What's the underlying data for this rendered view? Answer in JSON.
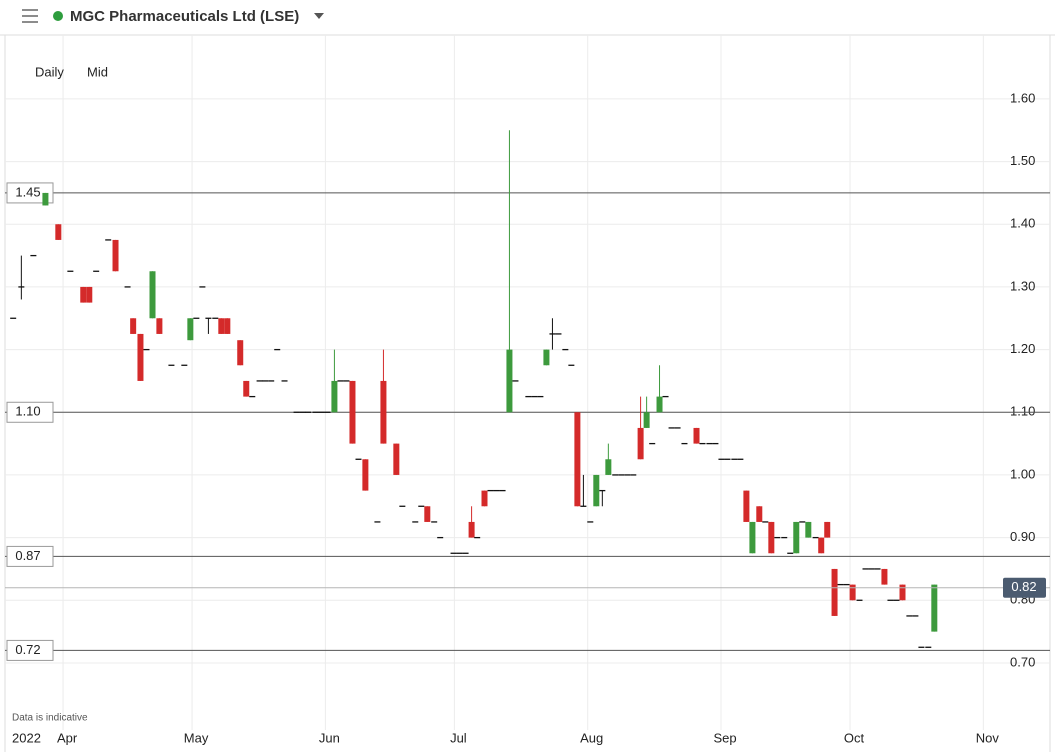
{
  "header": {
    "title": "MGC Pharmaceuticals Ltd (LSE)"
  },
  "toolbar": {
    "interval": "Daily",
    "price_type": "Mid"
  },
  "footer_note": "Data is indicative",
  "chart_data": {
    "type": "candlestick",
    "x": [
      79.4,
      81.3,
      84.1,
      86.9,
      89.9,
      92.7,
      95.7,
      97.1,
      98.7,
      101.5,
      103.2,
      106.0,
      107.3,
      109.0,
      110.4,
      111.8,
      113.4,
      116.2,
      119.2,
      120.6,
      122.0,
      123.4,
      124.8,
      126.4,
      127.8,
      129.2,
      132.2,
      133.6,
      135.0,
      136.7,
      138.0,
      139.4,
      140.8,
      142.5,
      145.3,
      146.7,
      148.0,
      149.7,
      151.1,
      152.5,
      154.1,
      155.5,
      156.9,
      158.3,
      159.7,
      161.3,
      164.1,
      165.5,
      168.5,
      169.9,
      172.9,
      174.3,
      175.7,
      177.3,
      178.7,
      181.8,
      183.2,
      184.6,
      186.0,
      187.3,
      189.0,
      190.4,
      191.8,
      193.2,
      194.8,
      196.2,
      199.2,
      200.6,
      202.0,
      203.4,
      204.8,
      206.2,
      207.8,
      209.2,
      210.6,
      212.0,
      213.6,
      215.0,
      216.4,
      217.8,
      219.4,
      220.8,
      222.2,
      223.6,
      225.3,
      226.7,
      228.0,
      229.7,
      231.1,
      232.5,
      233.9,
      235.5,
      238.3,
      239.7,
      241.3,
      242.7,
      244.1,
      245.5,
      247.1,
      248.5,
      249.9,
      251.3,
      252.9,
      254.3,
      255.7,
      257.1,
      258.7,
      260.1,
      261.5,
      262.9,
      264.3,
      266.0,
      267.3,
      268.7,
      270.4,
      271.8,
      273.2,
      274.6,
      276.2,
      277.6,
      279.0,
      280.4,
      282.0,
      283.4,
      284.8,
      286.2,
      287.8,
      289.2,
      290.6,
      292.2,
      293.6
    ],
    "open": [
      1.25,
      1.3,
      1.35,
      1.43,
      1.4,
      1.325,
      1.3,
      1.3,
      1.325,
      1.375,
      1.375,
      1.3,
      1.25,
      1.225,
      1.2,
      1.25,
      1.25,
      1.175,
      1.175,
      1.215,
      1.25,
      1.3,
      1.25,
      1.25,
      1.25,
      1.25,
      1.215,
      1.15,
      1.125,
      1.15,
      1.15,
      1.15,
      1.2,
      1.15,
      1.1,
      1.1,
      1.1,
      1.1,
      1.1,
      1.1,
      1.1,
      1.15,
      1.15,
      1.15,
      1.025,
      1.025,
      0.925,
      1.15,
      1.05,
      0.95,
      0.925,
      0.95,
      0.95,
      0.925,
      0.9,
      0.875,
      0.875,
      0.875,
      0.925,
      0.9,
      0.975,
      0.975,
      0.975,
      0.975,
      1.1,
      1.15,
      1.125,
      1.125,
      1.125,
      1.175,
      1.225,
      1.225,
      1.2,
      1.175,
      1.1,
      0.95,
      0.925,
      0.95,
      0.975,
      1.0,
      1.0,
      1.0,
      1.0,
      1.0,
      1.075,
      1.075,
      1.05,
      1.1,
      1.125,
      1.075,
      1.075,
      1.05,
      1.075,
      1.05,
      1.05,
      1.05,
      1.025,
      1.025,
      1.025,
      1.025,
      0.975,
      0.875,
      0.95,
      0.925,
      0.925,
      0.9,
      0.9,
      0.875,
      0.875,
      0.925,
      0.9,
      0.9,
      0.9,
      0.925,
      0.85,
      0.825,
      0.825,
      0.825,
      0.8,
      0.85,
      0.85,
      0.85,
      0.85,
      0.8,
      0.8,
      0.825,
      0.775,
      0.775,
      0.725,
      0.725,
      0.75
    ],
    "high": [
      1.25,
      1.35,
      1.35,
      1.45,
      1.4,
      1.325,
      1.3,
      1.3,
      1.325,
      1.375,
      1.375,
      1.3,
      1.25,
      1.225,
      1.2,
      1.325,
      1.25,
      1.175,
      1.175,
      1.25,
      1.25,
      1.3,
      1.25,
      1.25,
      1.25,
      1.25,
      1.215,
      1.15,
      1.125,
      1.15,
      1.15,
      1.15,
      1.2,
      1.15,
      1.1,
      1.1,
      1.1,
      1.1,
      1.1,
      1.1,
      1.2,
      1.15,
      1.15,
      1.15,
      1.025,
      1.025,
      0.925,
      1.2,
      1.05,
      0.95,
      0.925,
      0.95,
      0.95,
      0.925,
      0.9,
      0.875,
      0.875,
      0.875,
      0.95,
      0.9,
      0.975,
      0.975,
      0.975,
      0.975,
      1.55,
      1.15,
      1.125,
      1.125,
      1.125,
      1.2,
      1.25,
      1.225,
      1.2,
      1.175,
      1.1,
      1.0,
      0.925,
      1.0,
      0.975,
      1.05,
      1.0,
      1.0,
      1.0,
      1.0,
      1.125,
      1.125,
      1.05,
      1.175,
      1.125,
      1.075,
      1.075,
      1.05,
      1.075,
      1.05,
      1.05,
      1.05,
      1.025,
      1.025,
      1.025,
      1.025,
      0.975,
      0.925,
      0.95,
      0.925,
      0.925,
      0.9,
      0.9,
      0.875,
      0.925,
      0.925,
      0.925,
      0.9,
      0.9,
      0.925,
      0.85,
      0.825,
      0.825,
      0.825,
      0.8,
      0.85,
      0.85,
      0.85,
      0.85,
      0.8,
      0.8,
      0.825,
      0.775,
      0.775,
      0.725,
      0.725,
      0.825
    ],
    "low": [
      1.25,
      1.28,
      1.35,
      1.43,
      1.375,
      1.325,
      1.275,
      1.275,
      1.325,
      1.375,
      1.325,
      1.3,
      1.225,
      1.15,
      1.2,
      1.25,
      1.225,
      1.175,
      1.175,
      1.215,
      1.25,
      1.3,
      1.225,
      1.25,
      1.225,
      1.225,
      1.175,
      1.125,
      1.125,
      1.15,
      1.15,
      1.15,
      1.2,
      1.15,
      1.1,
      1.1,
      1.1,
      1.1,
      1.1,
      1.1,
      1.1,
      1.15,
      1.15,
      1.05,
      1.025,
      0.975,
      0.925,
      1.05,
      1.0,
      0.95,
      0.925,
      0.95,
      0.925,
      0.925,
      0.9,
      0.875,
      0.875,
      0.875,
      0.9,
      0.9,
      0.95,
      0.975,
      0.975,
      0.975,
      1.1,
      1.15,
      1.125,
      1.125,
      1.125,
      1.175,
      1.2,
      1.225,
      1.2,
      1.175,
      0.95,
      0.95,
      0.925,
      0.95,
      0.95,
      1.0,
      1.0,
      1.0,
      1.0,
      1.0,
      1.025,
      1.075,
      1.05,
      1.1,
      1.125,
      1.075,
      1.075,
      1.05,
      1.05,
      1.05,
      1.05,
      1.05,
      1.025,
      1.025,
      1.025,
      1.025,
      0.925,
      0.875,
      0.925,
      0.925,
      0.875,
      0.9,
      0.9,
      0.875,
      0.875,
      0.925,
      0.9,
      0.9,
      0.875,
      0.9,
      0.775,
      0.825,
      0.825,
      0.8,
      0.8,
      0.85,
      0.85,
      0.85,
      0.825,
      0.8,
      0.8,
      0.8,
      0.775,
      0.775,
      0.725,
      0.725,
      0.75
    ],
    "close": [
      1.25,
      1.3,
      1.35,
      1.45,
      1.375,
      1.325,
      1.275,
      1.275,
      1.325,
      1.375,
      1.325,
      1.3,
      1.225,
      1.15,
      1.2,
      1.325,
      1.225,
      1.175,
      1.175,
      1.25,
      1.25,
      1.3,
      1.25,
      1.25,
      1.225,
      1.225,
      1.175,
      1.125,
      1.125,
      1.15,
      1.15,
      1.15,
      1.2,
      1.15,
      1.1,
      1.1,
      1.1,
      1.1,
      1.1,
      1.1,
      1.15,
      1.15,
      1.15,
      1.05,
      1.025,
      0.975,
      0.925,
      1.05,
      1.0,
      0.95,
      0.925,
      0.95,
      0.925,
      0.925,
      0.9,
      0.875,
      0.875,
      0.875,
      0.9,
      0.9,
      0.95,
      0.975,
      0.975,
      0.975,
      1.2,
      1.15,
      1.125,
      1.125,
      1.125,
      1.2,
      1.225,
      1.225,
      1.2,
      1.175,
      0.95,
      0.95,
      0.925,
      1.0,
      0.975,
      1.025,
      1.0,
      1.0,
      1.0,
      1.0,
      1.025,
      1.1,
      1.05,
      1.125,
      1.125,
      1.075,
      1.075,
      1.05,
      1.05,
      1.05,
      1.05,
      1.05,
      1.025,
      1.025,
      1.025,
      1.025,
      0.925,
      0.925,
      0.925,
      0.925,
      0.875,
      0.9,
      0.9,
      0.875,
      0.925,
      0.925,
      0.925,
      0.9,
      0.875,
      0.9,
      0.775,
      0.825,
      0.825,
      0.8,
      0.8,
      0.85,
      0.85,
      0.85,
      0.825,
      0.8,
      0.8,
      0.8,
      0.775,
      0.775,
      0.725,
      0.725,
      0.825
    ],
    "up_color": "#3d9a3d",
    "down_color": "#d42a2a",
    "flat_color": "#111111",
    "xlim": [
      77.5,
      320.5
    ],
    "xticks": [
      {
        "value": 91,
        "label": "Apr"
      },
      {
        "value": 121,
        "label": "May"
      },
      {
        "value": 152,
        "label": "Jun"
      },
      {
        "value": 182,
        "label": "Jul"
      },
      {
        "value": 213,
        "label": "Aug"
      },
      {
        "value": 244,
        "label": "Sep"
      },
      {
        "value": 274,
        "label": "Oct"
      },
      {
        "value": 305,
        "label": "Nov"
      }
    ],
    "x_year_label": "2022",
    "ylim": [
      0.593,
      1.702
    ],
    "yticks": [
      {
        "value": 0.7,
        "label": "0.70"
      },
      {
        "value": 0.8,
        "label": "0.80"
      },
      {
        "value": 0.9,
        "label": "0.90"
      },
      {
        "value": 1.0,
        "label": "1.00"
      },
      {
        "value": 1.1,
        "label": "1.10"
      },
      {
        "value": 1.2,
        "label": "1.20"
      },
      {
        "value": 1.3,
        "label": "1.30"
      },
      {
        "value": 1.4,
        "label": "1.40"
      },
      {
        "value": 1.5,
        "label": "1.50"
      },
      {
        "value": 1.6,
        "label": "1.60"
      }
    ],
    "grid": true,
    "price_lines": [
      1.45,
      {
        "value": 1.1,
        "label": "1.10"
      },
      0.87,
      0.72
    ],
    "current_price": 0.82,
    "current_price_color": "#4b5b70"
  }
}
